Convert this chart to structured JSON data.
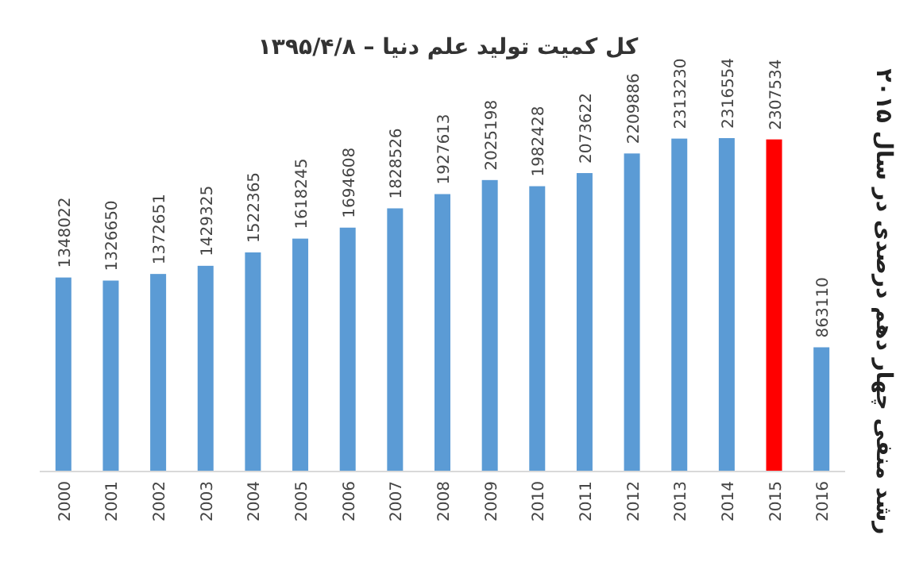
{
  "chart_data": {
    "type": "bar",
    "title": "کل کمیت تولید علم دنیا – ۱۳۹۵/۴/۸",
    "categories": [
      "2000",
      "2001",
      "2002",
      "2003",
      "2004",
      "2005",
      "2006",
      "2007",
      "2008",
      "2009",
      "2010",
      "2011",
      "2012",
      "2013",
      "2014",
      "2015",
      "2016"
    ],
    "values": [
      1348022,
      1326650,
      1372651,
      1429325,
      1522365,
      1618245,
      1694608,
      1828526,
      1927613,
      2025198,
      1982428,
      2073622,
      2209886,
      2313230,
      2316554,
      2307534,
      863110
    ],
    "colors": [
      "#5b9bd5",
      "#5b9bd5",
      "#5b9bd5",
      "#5b9bd5",
      "#5b9bd5",
      "#5b9bd5",
      "#5b9bd5",
      "#5b9bd5",
      "#5b9bd5",
      "#5b9bd5",
      "#5b9bd5",
      "#5b9bd5",
      "#5b9bd5",
      "#5b9bd5",
      "#5b9bd5",
      "#ff0000",
      "#5b9bd5"
    ],
    "data_labels": true,
    "annotations": [
      "رشد منفی چهار دهم درصدی در سال ۲۰۱۵"
    ]
  }
}
